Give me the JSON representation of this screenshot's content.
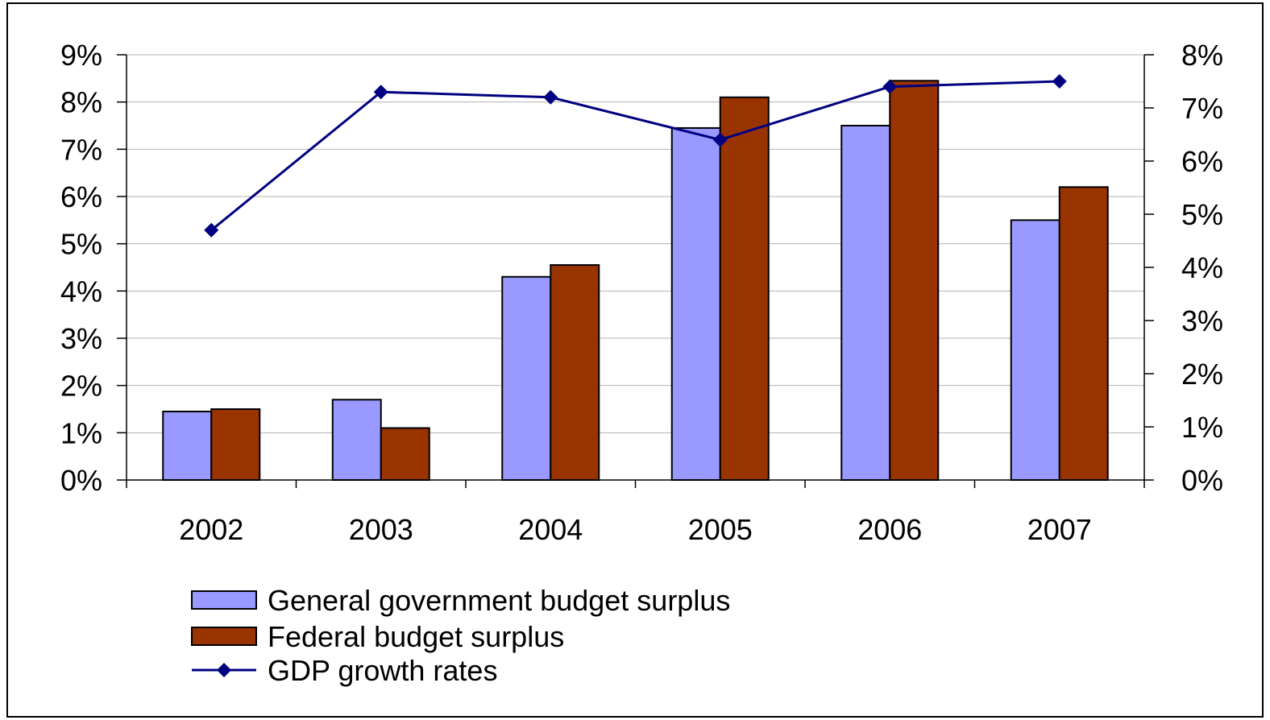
{
  "chart_data": {
    "type": "bar",
    "categories": [
      "2002",
      "2003",
      "2004",
      "2005",
      "2006",
      "2007"
    ],
    "series": [
      {
        "name": "General government budget surplus",
        "kind": "bar",
        "axis": "left",
        "color": "#9999ff",
        "values": [
          1.45,
          1.7,
          4.3,
          7.45,
          7.5,
          5.5
        ]
      },
      {
        "name": "Federal budget surplus",
        "kind": "bar",
        "axis": "left",
        "color": "#993300",
        "values": [
          1.5,
          1.1,
          4.55,
          8.1,
          8.45,
          6.2
        ]
      },
      {
        "name": "GDP growth rates",
        "kind": "line",
        "axis": "right",
        "color": "#000080",
        "marker": "diamond",
        "values": [
          4.7,
          7.3,
          7.2,
          6.4,
          7.4,
          7.5
        ]
      }
    ],
    "y_left": {
      "min": 0,
      "max": 9,
      "step": 1,
      "tick_labels": [
        "0%",
        "1%",
        "2%",
        "3%",
        "4%",
        "5%",
        "6%",
        "7%",
        "8%",
        "9%"
      ]
    },
    "y_right": {
      "min": 0,
      "max": 8,
      "step": 1,
      "tick_labels": [
        "0%",
        "1%",
        "2%",
        "3%",
        "4%",
        "5%",
        "6%",
        "7%",
        "8%"
      ]
    },
    "grid": true,
    "legend_position": "bottom-left",
    "title": "",
    "xlabel": "",
    "ylabel": ""
  }
}
